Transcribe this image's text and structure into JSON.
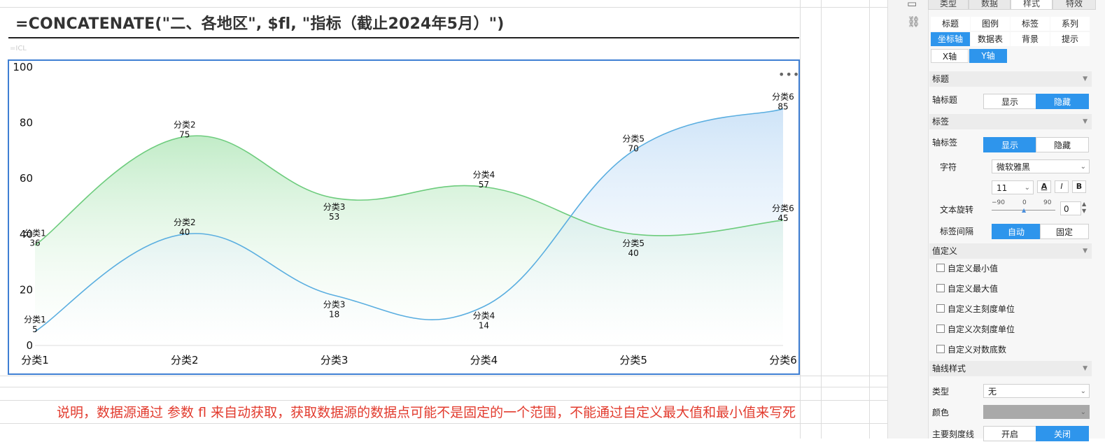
{
  "formula": "=CONCATENATE(\"二、各地区\", $fl, \"指标（截止2024年5月）\")",
  "cell_hint": "=ICL",
  "note": "说明，数据源通过 参数 fl 来自动获取，获取数据源的数据点可能不是固定的一个范围，不能通过自定义最大值和最小值来写死",
  "chart_data": {
    "type": "area",
    "categories": [
      "分类1",
      "分类2",
      "分类3",
      "分类4",
      "分类5",
      "分类6"
    ],
    "series": [
      {
        "values": [
          36,
          75,
          53,
          57,
          40,
          45
        ],
        "color": "#6dcc7d"
      },
      {
        "values": [
          5,
          40,
          18,
          14,
          70,
          85
        ],
        "color": "#5aaee0"
      }
    ],
    "y_ticks": [
      "0",
      "20",
      "40",
      "60",
      "80",
      "100"
    ],
    "ylim": [
      0,
      100
    ],
    "grid": false,
    "legend": "none"
  },
  "panel": {
    "top_tabs": [
      "类型",
      "数据",
      "样式",
      "特效"
    ],
    "sub_tabs": [
      "标题",
      "图例",
      "标签",
      "系列",
      "坐标轴",
      "数据表",
      "背景",
      "提示"
    ],
    "axis_tabs": [
      "X轴",
      "Y轴"
    ],
    "sec_title": "标题",
    "axis_title_label": "轴标题",
    "show": "显示",
    "hide": "隐藏",
    "sec_label": "标签",
    "axis_label_label": "轴标签",
    "font_label": "字符",
    "font_value": "微软雅黑",
    "font_size": "11",
    "bold": "B",
    "italic": "I",
    "color_a": "A",
    "rotate_label": "文本旋转",
    "rotate_min": "−90",
    "rotate_mid": "0",
    "rotate_max": "90",
    "rotate_value": "0",
    "interval_label": "标签间隔",
    "auto": "自动",
    "fixed": "固定",
    "sec_value": "值定义",
    "checks": [
      "自定义最小值",
      "自定义最大值",
      "自定义主刻度单位",
      "自定义次刻度单位",
      "自定义对数底数"
    ],
    "sec_axisstyle": "轴线样式",
    "type_label": "类型",
    "type_value": "无",
    "color_label": "颜色",
    "major_tick_label": "主要刻度线",
    "on": "开启",
    "off": "关闭"
  }
}
